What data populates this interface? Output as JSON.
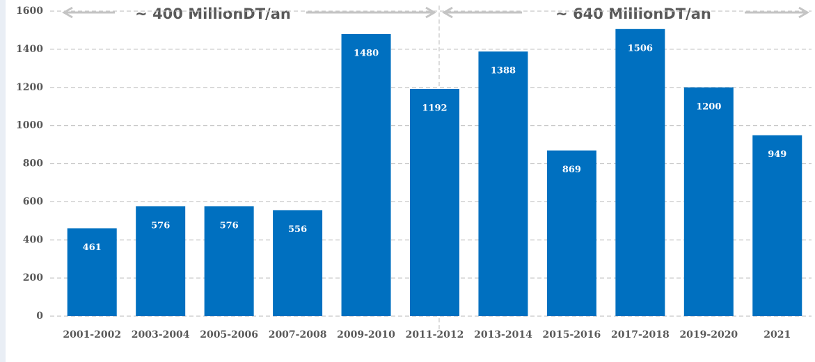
{
  "chart_data": {
    "type": "bar",
    "categories": [
      "2001-2002",
      "2003-2004",
      "2005-2006",
      "2007-2008",
      "2009-2010",
      "2011-2012",
      "2013-2014",
      "2015-2016",
      "2017-2018",
      "2019-2020",
      "2021"
    ],
    "values": [
      461,
      576,
      576,
      556,
      1480,
      1192,
      1388,
      869,
      1506,
      1200,
      949
    ],
    "color": "#0070c0",
    "ylim": [
      0,
      1600
    ],
    "yticks": [
      0,
      200,
      400,
      600,
      800,
      1000,
      1200,
      1400,
      1600
    ],
    "grid": true,
    "annotations": [
      "~ 400 MillionDT/an",
      "~ 640 MillionDT/an"
    ]
  }
}
